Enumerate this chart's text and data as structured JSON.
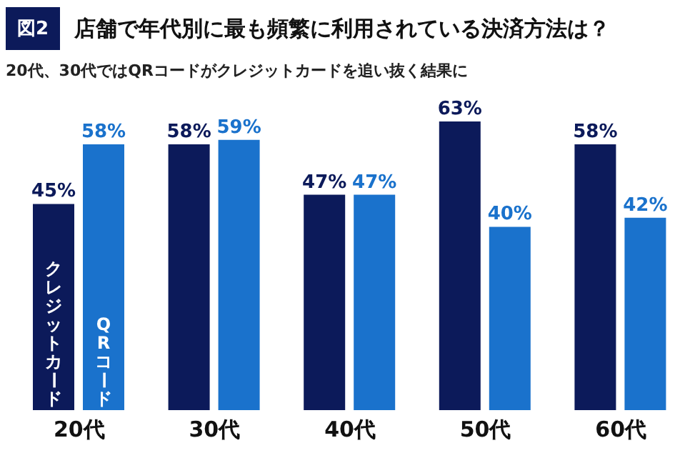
{
  "chart_data": {
    "type": "bar",
    "title": "店舗で年代別に最も頻繁に利用されている決済方法は？",
    "subtitle": "20代、30代ではQRコードがクレジットカードを追い抜く結果に",
    "annotations": [
      "図2"
    ],
    "categories": [
      "20代",
      "30代",
      "40代",
      "50代",
      "60代"
    ],
    "series": [
      {
        "name": "クレジットカード",
        "color": "#0c1a5a",
        "values": [
          45,
          58,
          47,
          63,
          58
        ],
        "value_labels": [
          "45%",
          "58%",
          "47%",
          "63%",
          "58%"
        ]
      },
      {
        "name": "QRコード",
        "color": "#1a72cc",
        "values": [
          58,
          59,
          47,
          40,
          42
        ],
        "value_labels": [
          "58%",
          "59%",
          "47%",
          "40%",
          "42%"
        ]
      }
    ],
    "legend": false,
    "grid": false
  }
}
